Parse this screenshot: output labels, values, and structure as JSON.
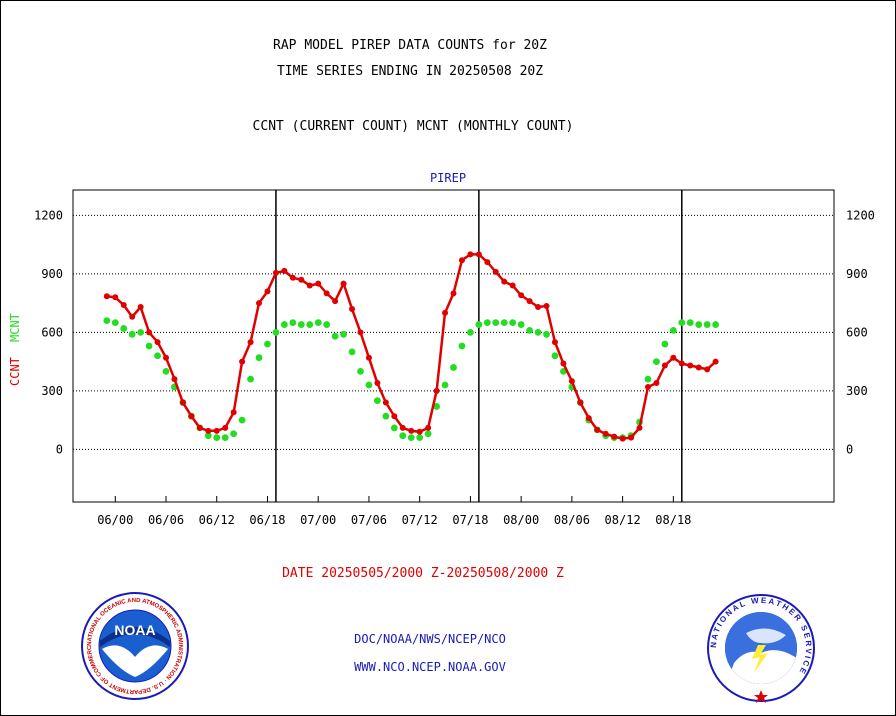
{
  "title_line1": "RAP MODEL PIREP DATA COUNTS for 20Z",
  "title_line2": "TIME SERIES ENDING IN 20250508 20Z",
  "title_line3": "CCNT (CURRENT COUNT) MCNT (MONTHLY COUNT)",
  "plot_subtitle": "PIREP",
  "date_range": "DATE 20250505/2000 Z-20250508/2000 Z",
  "footer_line1": "DOC/NOAA/NWS/NCEP/NCO",
  "footer_line2": "WWW.NCO.NCEP.NOAA.GOV",
  "logos": {
    "left": {
      "text": "NOAA",
      "ring_text": "NATIONAL OCEANIC AND ATMOSPHERIC ADMINISTRATION · U.S. DEPARTMENT OF COMMERCE"
    },
    "right": {
      "ring_text": "NATIONAL WEATHER SERVICE"
    }
  },
  "colors": {
    "ccnt": "#e00000",
    "mcnt": "#22dd22",
    "text_blue": "#1a1ab8"
  },
  "chart_data": {
    "type": "line",
    "ylabel_ccnt": "CCNT",
    "ylabel_mcnt": "MCNT",
    "ylim": [
      -270,
      1330
    ],
    "yticks": [
      0,
      300,
      600,
      900,
      1200
    ],
    "grid": true,
    "xlim": [
      -4,
      86
    ],
    "x_ticks": [
      {
        "x": 1,
        "label": "06/00"
      },
      {
        "x": 7,
        "label": "06/06"
      },
      {
        "x": 13,
        "label": "06/12"
      },
      {
        "x": 19,
        "label": "06/18"
      },
      {
        "x": 25,
        "label": "07/00"
      },
      {
        "x": 31,
        "label": "07/06"
      },
      {
        "x": 37,
        "label": "07/12"
      },
      {
        "x": 43,
        "label": "07/18"
      },
      {
        "x": 49,
        "label": "08/00"
      },
      {
        "x": 55,
        "label": "08/06"
      },
      {
        "x": 61,
        "label": "08/12"
      },
      {
        "x": 67,
        "label": "08/18"
      }
    ],
    "day_boundaries": [
      20,
      44,
      68
    ],
    "series": [
      {
        "name": "CCNT",
        "style": "solid",
        "values": [
          785,
          780,
          740,
          680,
          730,
          600,
          550,
          470,
          360,
          240,
          170,
          110,
          95,
          95,
          110,
          190,
          450,
          550,
          750,
          810,
          905,
          915,
          880,
          870,
          840,
          850,
          800,
          760,
          850,
          720,
          600,
          470,
          340,
          240,
          170,
          110,
          95,
          90,
          110,
          300,
          700,
          800,
          970,
          1000,
          1000,
          960,
          910,
          860,
          840,
          790,
          760,
          730,
          735,
          550,
          440,
          350,
          240,
          160,
          100,
          80,
          65,
          55,
          60,
          110,
          320,
          340,
          430,
          470,
          440,
          430,
          420,
          410,
          450
        ]
      },
      {
        "name": "MCNT",
        "style": "dotted",
        "values": [
          660,
          650,
          620,
          590,
          600,
          530,
          480,
          400,
          320,
          240,
          170,
          110,
          70,
          60,
          60,
          80,
          150,
          360,
          470,
          540,
          600,
          640,
          650,
          640,
          640,
          650,
          640,
          580,
          590,
          500,
          400,
          330,
          250,
          170,
          110,
          70,
          60,
          60,
          80,
          220,
          330,
          420,
          530,
          600,
          640,
          650,
          650,
          650,
          650,
          640,
          610,
          600,
          590,
          480,
          400,
          320,
          240,
          150,
          100,
          70,
          60,
          60,
          70,
          140,
          360,
          450,
          540,
          610,
          650,
          650,
          640,
          640,
          640
        ]
      }
    ]
  }
}
